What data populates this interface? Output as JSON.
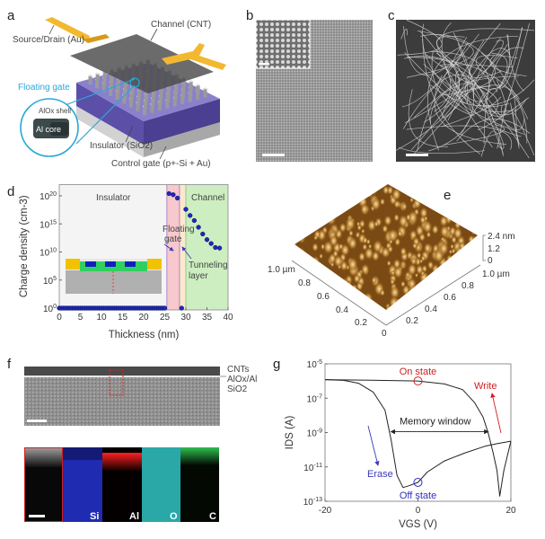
{
  "panels": {
    "a": "a",
    "b": "b",
    "c": "c",
    "d": "d",
    "e": "e",
    "f": "f",
    "g": "g"
  },
  "panel_a": {
    "source_drain": "Source/Drain (Au)",
    "channel": "Channel (CNT)",
    "floating_gate": "Floating gate",
    "shell": "AlOx shell",
    "core": "Al core",
    "insulator": "Insulator (SiO2)",
    "control_gate": "Control gate (p+-Si + Au)",
    "colors": {
      "gold": "#f2b830",
      "purple": "#6a5fb0",
      "cyan": "#2aa8d8",
      "gray": "#c8c8c8"
    }
  },
  "panel_e": {
    "z_ticks": [
      "2.4 nm",
      "1.2",
      "0"
    ],
    "left_axis_ticks": [
      "1.0 µm",
      "0.8",
      "0.6",
      "0.4",
      "0.2"
    ],
    "right_axis_ticks": [
      "1.0 µm",
      "0.8",
      "0.6",
      "0.4",
      "0.2"
    ],
    "origin": "0"
  },
  "panel_f": {
    "layers": [
      "CNTs",
      "AlOx/Al",
      "SiO2"
    ],
    "eds_maps": [
      {
        "label": "",
        "color": "#9a9a9a"
      },
      {
        "label": "Si",
        "color": "#1f2bb0"
      },
      {
        "label": "Al",
        "color": "#d01010"
      },
      {
        "label": "O",
        "color": "#2aa8a8"
      },
      {
        "label": "C",
        "color": "#20a040"
      }
    ]
  },
  "chart_data": [
    {
      "type": "scatter",
      "id": "d",
      "title": "",
      "xlabel": "Thickness (nm)",
      "ylabel": "Charge density (cm-3)",
      "ylabel_parts": {
        "main": "Charge density (cm",
        "sup": "-3",
        "end": ")"
      },
      "xlim": [
        0,
        40
      ],
      "ylim_log10": [
        0,
        22
      ],
      "x_ticks": [
        0,
        5,
        10,
        15,
        20,
        25,
        30,
        35,
        40
      ],
      "y_ticks_log10": [
        0,
        5,
        10,
        15,
        20
      ],
      "regions": [
        {
          "name": "Insulator",
          "from": 0,
          "to": 25.5,
          "color": "#f4f4f4"
        },
        {
          "name": "Floating gate",
          "from": 25.5,
          "to": 28.5,
          "color": "#f7c8cc"
        },
        {
          "name": "Tunneling layer",
          "from": 28.5,
          "to": 30,
          "color": "#fbe9cc"
        },
        {
          "name": "Channel",
          "from": 30,
          "to": 40,
          "color": "#cdeec0"
        }
      ],
      "labels": {
        "insulator": "Insulator",
        "channel": "Channel",
        "floating_1": "Floating",
        "floating_2": "gate",
        "tunneling_1": "Tunneling",
        "tunneling_2": "layer"
      },
      "series": [
        {
          "name": "Insulator",
          "x_range": [
            0,
            25
          ],
          "x_step": 0.5,
          "y_log10": 0
        },
        {
          "name": "Floating gate",
          "x": [
            26,
            27,
            28
          ],
          "y_log10": [
            20.4,
            20.2,
            19.6
          ]
        },
        {
          "name": "Tunneling layer",
          "x": [
            29
          ],
          "y_log10": [
            0
          ]
        },
        {
          "name": "Channel",
          "x": [
            30,
            31,
            32,
            33,
            34,
            35,
            36,
            37,
            38
          ],
          "y_log10": [
            17.6,
            16.5,
            15.6,
            14.4,
            13.2,
            12.2,
            11.5,
            10.8,
            10.7
          ]
        }
      ],
      "marker_color": "#1f2ab8"
    },
    {
      "type": "line",
      "id": "g",
      "xlabel": "VGS (V)",
      "ylabel": "IDS (A)",
      "xlim": [
        -20,
        20
      ],
      "ylim_log10": [
        -13,
        -5
      ],
      "x_ticks": [
        -20,
        0,
        20
      ],
      "y_ticks_log10": [
        -5,
        -7,
        -9,
        -11,
        -13
      ],
      "series": [
        {
          "name": "forward",
          "x": [
            -20,
            -10,
            0,
            5.7,
            9.6,
            12.2,
            14,
            15.1,
            16.2,
            17,
            17.6,
            18.5,
            20
          ],
          "y_log10": [
            -5.92,
            -5.95,
            -6.0,
            -6.17,
            -6.5,
            -7.26,
            -8.1,
            -9.0,
            -10.2,
            -11.2,
            -12.7,
            -11.2,
            -9.5
          ]
        },
        {
          "name": "reverse",
          "x": [
            20,
            17,
            14.4,
            10,
            5.7,
            2,
            0,
            -2,
            -3.2,
            -4.5,
            -5.8,
            -7.1,
            -9.6,
            -12.8,
            -16,
            -20
          ],
          "y_log10": [
            -9.5,
            -9.65,
            -9.8,
            -10.2,
            -10.65,
            -11.3,
            -11.9,
            -12.1,
            -12.2,
            -11.5,
            -9.4,
            -7.7,
            -6.65,
            -6.13,
            -5.96,
            -5.92
          ]
        }
      ],
      "annotations": {
        "on_state": {
          "text": "On state",
          "x": 0,
          "y_log10": -6.0,
          "color": "#d02020"
        },
        "off_state": {
          "text": "Off state",
          "x": 0,
          "y_log10": -11.9,
          "color": "#3030c0"
        },
        "write": {
          "text": "Write",
          "color": "#d02020"
        },
        "erase": {
          "text": "Erase",
          "color": "#3a3ab8"
        },
        "memory_window": {
          "text": "Memory window",
          "from": -5.8,
          "to": 15.1,
          "y_log10": -8.95
        }
      }
    }
  ]
}
